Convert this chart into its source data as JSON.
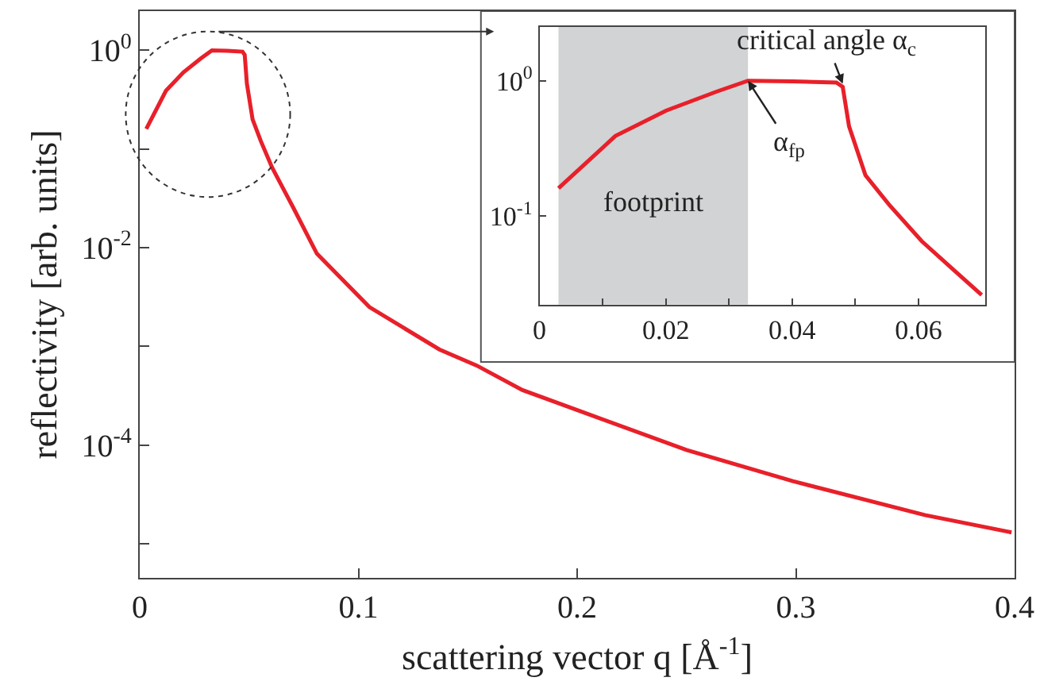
{
  "chart_data": [
    {
      "type": "line",
      "xlabel": "scattering vector q [Å$^{-1}$]",
      "ylabel": "reflectivity [arb. units]",
      "log": "y",
      "xlim": [
        0,
        0.4
      ],
      "xticks": [
        0,
        0.1,
        0.2,
        0.3,
        0.4
      ],
      "ylim": [
        4.5e-06,
        2.5
      ],
      "yticks": [
        {
          "value": 1,
          "label": "10$^{0}$"
        },
        {
          "value": 0.1,
          "label": null
        },
        {
          "value": 0.01,
          "label": "10$^{-2}$"
        },
        {
          "value": 0.001,
          "label": null
        },
        {
          "value": 0.0001,
          "label": "10$^{-4}$"
        },
        {
          "value": 1e-05,
          "label": null
        }
      ],
      "grid": false,
      "marker": "none",
      "line_style": "solid",
      "series": [
        {
          "color": "#e8202a",
          "x": [
            0.003,
            0.012,
            0.02,
            0.028,
            0.033,
            0.04,
            0.047,
            0.048,
            0.049,
            0.0516,
            0.0554,
            0.0605,
            0.0655,
            0.07,
            0.081,
            0.105,
            0.137,
            0.154,
            0.175,
            0.204,
            0.25,
            0.2986,
            0.359,
            0.3986
          ],
          "values": [
            0.16,
            0.39,
            0.6,
            0.83,
            1.0,
            0.99,
            0.97,
            0.9,
            0.46,
            0.2,
            0.12,
            0.065,
            0.04,
            0.026,
            0.0087,
            0.0025,
            0.00093,
            0.00064,
            0.00036,
            0.00021,
            8.9e-05,
            4.3e-05,
            1.95e-05,
            1.3e-05
          ]
        }
      ]
    },
    {
      "type": "line",
      "xlim": [
        0,
        0.0705
      ],
      "xticks": [
        0,
        {
          "value": 0.01,
          "label": null
        },
        0.02,
        {
          "value": 0.03,
          "label": null
        },
        0.04,
        {
          "value": 0.05,
          "label": null
        },
        0.06
      ],
      "log": "y",
      "ylim": [
        0.022,
        2.5
      ],
      "yticks": [
        {
          "value": 1,
          "label": "10$^{0}$"
        },
        {
          "value": 0.1,
          "label": "10$^{-1}$"
        }
      ],
      "grid": false,
      "marker": "none",
      "line_style": "solid",
      "bands": [
        {
          "axis": "x",
          "from": 0.003,
          "to": 0.033,
          "label": "footprint",
          "color": "#d1d3d4"
        }
      ],
      "annotations": [
        {
          "text": "critical angle α$_{c}$",
          "x": 0.048,
          "y": 0.95
        },
        {
          "text": "α$_{fp}$",
          "x": 0.033,
          "y": 1.0
        }
      ],
      "series": [
        {
          "color": "#e8202a",
          "x": [
            0.003,
            0.012,
            0.02,
            0.028,
            0.033,
            0.04,
            0.047,
            0.048,
            0.049,
            0.0516,
            0.0554,
            0.0605,
            0.0655,
            0.07
          ],
          "values": [
            0.16,
            0.39,
            0.6,
            0.83,
            1.0,
            0.99,
            0.97,
            0.9,
            0.46,
            0.2,
            0.12,
            0.065,
            0.04,
            0.026
          ]
        }
      ]
    }
  ]
}
